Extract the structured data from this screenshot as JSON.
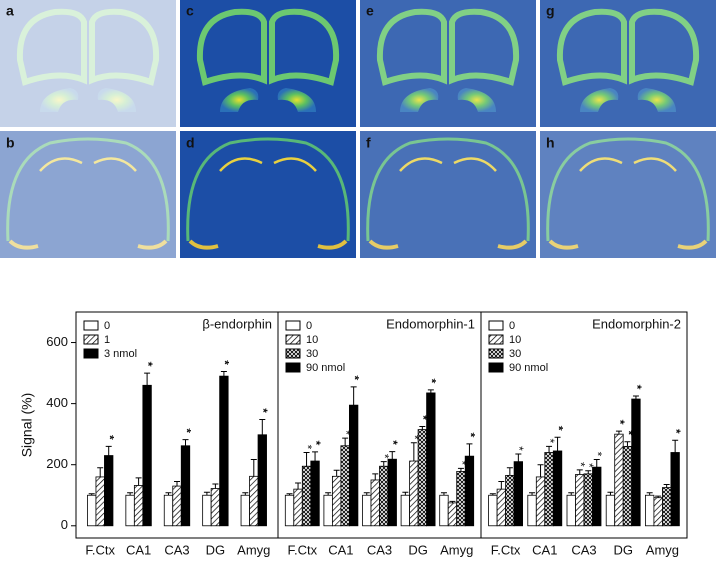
{
  "images": {
    "labels": [
      "a",
      "c",
      "e",
      "g",
      "b",
      "d",
      "f",
      "h"
    ]
  },
  "chart_data": [
    {
      "type": "bar",
      "title": "β-endorphin",
      "ylabel": "Signal (%)",
      "categories": [
        "F.Ctx",
        "CA1",
        "CA3",
        "DG",
        "Amyg"
      ],
      "ylim": [
        -40,
        700
      ],
      "yticks": [
        0,
        200,
        400,
        600
      ],
      "series": [
        {
          "name": "0",
          "fill": "white",
          "values": [
            100,
            100,
            100,
            100,
            100
          ],
          "errors": [
            5,
            8,
            8,
            10,
            8
          ],
          "stars": [
            null,
            null,
            null,
            null,
            null
          ]
        },
        {
          "name": "1",
          "fill": "hatch",
          "values": [
            160,
            132,
            130,
            122,
            162
          ],
          "errors": [
            30,
            25,
            15,
            15,
            55
          ],
          "stars": [
            null,
            null,
            null,
            null,
            null
          ]
        },
        {
          "name": "3 nmol",
          "fill": "black",
          "values": [
            230,
            460,
            262,
            490,
            298
          ],
          "errors": [
            30,
            40,
            20,
            15,
            50
          ],
          "stars": [
            "**",
            "**",
            "**",
            "**",
            "**"
          ]
        }
      ]
    },
    {
      "type": "bar",
      "title": "Endomorphin-1",
      "categories": [
        "F.Ctx",
        "CA1",
        "CA3",
        "DG",
        "Amyg"
      ],
      "ylim": [
        -40,
        700
      ],
      "series": [
        {
          "name": "0",
          "fill": "white",
          "values": [
            100,
            100,
            100,
            100,
            100
          ],
          "errors": [
            5,
            8,
            8,
            10,
            8
          ],
          "stars": [
            null,
            null,
            null,
            null,
            null
          ]
        },
        {
          "name": "10",
          "fill": "hatch",
          "values": [
            120,
            162,
            150,
            212,
            75
          ],
          "errors": [
            20,
            20,
            20,
            60,
            5
          ],
          "stars": [
            null,
            null,
            null,
            "*",
            null
          ]
        },
        {
          "name": "30",
          "fill": "cross",
          "values": [
            195,
            262,
            195,
            315,
            178
          ],
          "errors": [
            45,
            25,
            15,
            10,
            10
          ],
          "stars": [
            "*",
            "*",
            "*",
            "**",
            "*"
          ]
        },
        {
          "name": "90 nmol",
          "fill": "black",
          "values": [
            212,
            395,
            218,
            435,
            228
          ],
          "errors": [
            30,
            60,
            25,
            10,
            40
          ],
          "stars": [
            "**",
            "**",
            "**",
            "**",
            "**"
          ]
        }
      ]
    },
    {
      "type": "bar",
      "title": "Endomorphin-2",
      "categories": [
        "F.Ctx",
        "CA1",
        "CA3",
        "DG",
        "Amyg"
      ],
      "ylim": [
        -40,
        700
      ],
      "series": [
        {
          "name": "0",
          "fill": "white",
          "values": [
            100,
            100,
            100,
            100,
            100
          ],
          "errors": [
            5,
            8,
            8,
            10,
            8
          ],
          "stars": [
            null,
            null,
            null,
            null,
            null
          ]
        },
        {
          "name": "10",
          "fill": "hatch",
          "values": [
            120,
            160,
            168,
            300,
            92
          ],
          "errors": [
            25,
            40,
            15,
            10,
            5
          ],
          "stars": [
            null,
            null,
            "*",
            "**",
            null
          ]
        },
        {
          "name": "30",
          "fill": "cross",
          "values": [
            165,
            240,
            170,
            260,
            125
          ],
          "errors": [
            25,
            20,
            10,
            15,
            10
          ],
          "stars": [
            null,
            "*",
            "*",
            "**",
            null
          ]
        },
        {
          "name": "90 nmol",
          "fill": "black",
          "values": [
            210,
            245,
            192,
            415,
            240
          ],
          "errors": [
            25,
            45,
            25,
            10,
            40
          ],
          "stars": [
            "*",
            "**",
            "*",
            "**",
            "**"
          ]
        }
      ]
    }
  ]
}
